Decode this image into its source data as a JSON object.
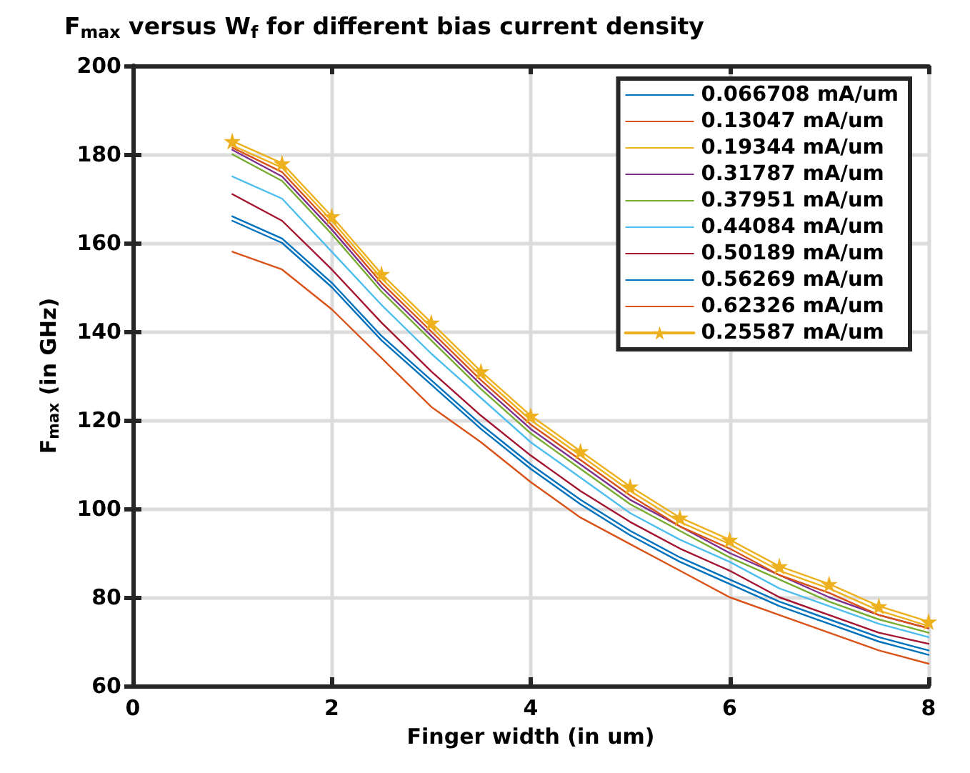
{
  "chart_data": {
    "type": "line",
    "title": "F$_{max}$ versus W$_{f}$ for different bias current density",
    "xlabel": "Finger width (in um)",
    "ylabel": "F$_{max}$ (in GHz)",
    "x": [
      1,
      1.5,
      2,
      2.5,
      3,
      3.5,
      4,
      4.5,
      5,
      5.5,
      6,
      6.5,
      7,
      7.5,
      8
    ],
    "xlim": [
      0,
      8
    ],
    "xticks": [
      0,
      2,
      4,
      6,
      8
    ],
    "ylim": [
      60,
      200
    ],
    "yticks": [
      60,
      80,
      100,
      120,
      140,
      160,
      180,
      200
    ],
    "grid": true,
    "legend": "top right",
    "marker": "none",
    "line_style": "solid",
    "series": [
      {
        "name": "0.066708 mA/um",
        "color": "#0072bd",
        "values": [
          165,
          160,
          150,
          138,
          128,
          118,
          109,
          101,
          94,
          88,
          83,
          78,
          74,
          70,
          67
        ]
      },
      {
        "name": "0.13047 mA/um",
        "color": "#d95319",
        "values": [
          158,
          154,
          145,
          134,
          123,
          115,
          106,
          98,
          92,
          86,
          80,
          76,
          72,
          68,
          65
        ]
      },
      {
        "name": "0.19344 mA/um",
        "color": "#edb120",
        "values": [
          182,
          177,
          165,
          152,
          141,
          130,
          120,
          112,
          104,
          97,
          92,
          86,
          82,
          77,
          73.5
        ]
      },
      {
        "name": "0.31787 mA/um",
        "color": "#7e2f8e",
        "values": [
          181,
          175,
          163,
          150,
          139,
          128,
          118,
          110,
          102,
          96,
          90,
          85,
          80,
          76,
          73
        ]
      },
      {
        "name": "0.37951 mA/um",
        "color": "#77ac30",
        "values": [
          180,
          174,
          162,
          149,
          138,
          127,
          117,
          109,
          101,
          95,
          89,
          84,
          79,
          75,
          72
        ]
      },
      {
        "name": "0.44084 mA/um",
        "color": "#4dbeee",
        "values": [
          175,
          170,
          158,
          146,
          135,
          125,
          115,
          107,
          99,
          93,
          88,
          82,
          78,
          74,
          71
        ]
      },
      {
        "name": "0.50189 mA/um",
        "color": "#a2142f",
        "values": [
          171,
          165,
          154,
          142,
          131,
          121,
          112,
          104,
          97,
          91,
          86,
          80,
          76,
          72,
          69.5
        ]
      },
      {
        "name": "0.56269 mA/um",
        "color": "#0072bd",
        "values": [
          166,
          161,
          151,
          139,
          129,
          119,
          110,
          102,
          95,
          89,
          84,
          79,
          75,
          71,
          68
        ]
      },
      {
        "name": "0.62326 mA/um",
        "color": "#d95319",
        "values": [
          181.5,
          176,
          164,
          151,
          140,
          129,
          119,
          111,
          103,
          96,
          91,
          85,
          81,
          76,
          73
        ]
      },
      {
        "name": "0.25587 mA/um",
        "color": "#edb120",
        "marker": "star",
        "values": [
          183,
          178,
          166,
          153,
          142,
          131,
          121,
          113,
          105,
          98,
          93,
          87,
          83,
          78,
          74.5
        ]
      }
    ]
  }
}
